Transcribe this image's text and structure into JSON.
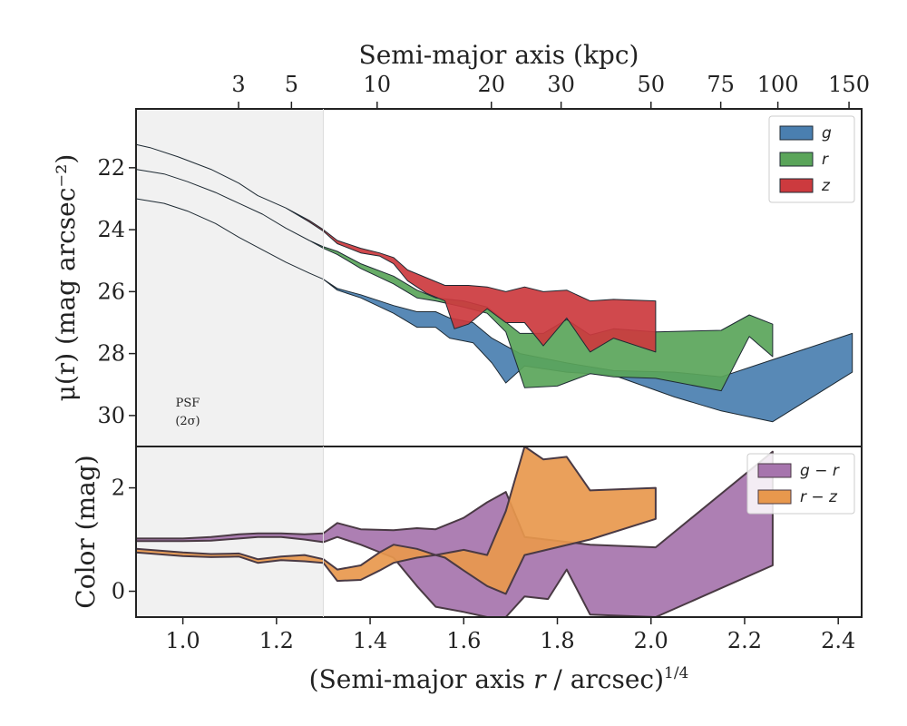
{
  "chart_data": [
    {
      "type": "area",
      "panel": "surface-brightness",
      "title": "",
      "xlabel": "(Semi-major axis r / arcsec)^1/4",
      "ylabel": "μ(r) (mag arcsec⁻²)",
      "top_xlabel": "Semi-major axis (kpc)",
      "top_xticks": [
        3,
        5,
        10,
        20,
        30,
        50,
        75,
        100,
        150
      ],
      "top_xtick_pos": [
        1.119,
        1.232,
        1.415,
        1.659,
        1.808,
        2.0,
        2.149,
        2.271,
        2.423
      ],
      "xlim": [
        0.9,
        2.45
      ],
      "ylim": [
        31.0,
        20.1
      ],
      "yticks": [
        22,
        24,
        26,
        28,
        30
      ],
      "xticks": [
        1.0,
        1.2,
        1.4,
        1.6,
        1.8,
        2.0,
        2.2,
        2.4
      ],
      "psf_region": [
        0.9,
        1.3
      ],
      "psf_label": [
        "PSF",
        "(2σ)"
      ],
      "legend_position": "top-right",
      "series": [
        {
          "name": "g",
          "color": "#4a7fb0",
          "upper": [
            [
              0.9,
              23.0
            ],
            [
              0.96,
              23.15
            ],
            [
              1.01,
              23.4
            ],
            [
              1.07,
              23.8
            ],
            [
              1.12,
              24.25
            ],
            [
              1.17,
              24.65
            ],
            [
              1.22,
              25.05
            ],
            [
              1.27,
              25.4
            ],
            [
              1.3,
              25.6
            ],
            [
              1.33,
              25.9
            ],
            [
              1.38,
              26.1
            ],
            [
              1.45,
              26.45
            ],
            [
              1.5,
              26.65
            ],
            [
              1.54,
              26.65
            ],
            [
              1.57,
              26.85
            ],
            [
              1.62,
              27.0
            ],
            [
              1.66,
              27.5
            ],
            [
              1.72,
              28.0
            ],
            [
              1.82,
              28.3
            ],
            [
              1.92,
              28.55
            ],
            [
              2.05,
              28.6
            ],
            [
              2.15,
              28.75
            ],
            [
              2.26,
              28.2
            ],
            [
              2.43,
              27.35
            ]
          ],
          "lower": [
            [
              0.9,
              23.0
            ],
            [
              0.96,
              23.15
            ],
            [
              1.01,
              23.4
            ],
            [
              1.07,
              23.8
            ],
            [
              1.12,
              24.25
            ],
            [
              1.17,
              24.65
            ],
            [
              1.22,
              25.05
            ],
            [
              1.27,
              25.4
            ],
            [
              1.3,
              25.6
            ],
            [
              1.33,
              25.95
            ],
            [
              1.38,
              26.2
            ],
            [
              1.45,
              26.7
            ],
            [
              1.5,
              27.15
            ],
            [
              1.54,
              27.15
            ],
            [
              1.57,
              27.5
            ],
            [
              1.62,
              27.65
            ],
            [
              1.66,
              28.3
            ],
            [
              1.69,
              28.95
            ],
            [
              1.73,
              28.4
            ],
            [
              1.82,
              28.6
            ],
            [
              1.92,
              28.7
            ],
            [
              2.05,
              29.4
            ],
            [
              2.15,
              29.85
            ],
            [
              2.26,
              30.2
            ],
            [
              2.43,
              28.6
            ]
          ]
        },
        {
          "name": "r",
          "color": "#5aa55a",
          "upper": [
            [
              0.9,
              22.05
            ],
            [
              0.96,
              22.2
            ],
            [
              1.01,
              22.45
            ],
            [
              1.07,
              22.8
            ],
            [
              1.12,
              23.15
            ],
            [
              1.17,
              23.5
            ],
            [
              1.22,
              23.95
            ],
            [
              1.27,
              24.35
            ],
            [
              1.3,
              24.55
            ],
            [
              1.33,
              24.7
            ],
            [
              1.38,
              25.1
            ],
            [
              1.45,
              25.5
            ],
            [
              1.5,
              25.95
            ],
            [
              1.54,
              26.2
            ],
            [
              1.6,
              26.3
            ],
            [
              1.65,
              26.5
            ],
            [
              1.72,
              27.35
            ],
            [
              1.77,
              27.35
            ],
            [
              1.82,
              26.9
            ],
            [
              1.87,
              27.4
            ],
            [
              1.92,
              27.2
            ],
            [
              2.01,
              27.3
            ],
            [
              2.15,
              27.25
            ],
            [
              2.21,
              26.75
            ],
            [
              2.26,
              27.05
            ],
            [
              2.26,
              28.1
            ]
          ],
          "lower": [
            [
              0.9,
              22.05
            ],
            [
              0.96,
              22.2
            ],
            [
              1.01,
              22.45
            ],
            [
              1.07,
              22.8
            ],
            [
              1.12,
              23.15
            ],
            [
              1.17,
              23.5
            ],
            [
              1.22,
              23.95
            ],
            [
              1.27,
              24.35
            ],
            [
              1.3,
              24.6
            ],
            [
              1.33,
              24.8
            ],
            [
              1.38,
              25.25
            ],
            [
              1.45,
              25.75
            ],
            [
              1.5,
              26.2
            ],
            [
              1.54,
              26.3
            ],
            [
              1.6,
              26.5
            ],
            [
              1.65,
              26.7
            ],
            [
              1.69,
              27.3
            ],
            [
              1.73,
              29.1
            ],
            [
              1.8,
              29.05
            ],
            [
              1.87,
              28.65
            ],
            [
              1.92,
              28.75
            ],
            [
              2.01,
              28.8
            ],
            [
              2.15,
              29.2
            ],
            [
              2.21,
              27.45
            ],
            [
              2.26,
              28.1
            ]
          ]
        },
        {
          "name": "z",
          "color": "#cc3a3e",
          "upper": [
            [
              0.9,
              21.25
            ],
            [
              0.93,
              21.35
            ],
            [
              0.99,
              21.65
            ],
            [
              1.06,
              22.05
            ],
            [
              1.12,
              22.5
            ],
            [
              1.16,
              22.9
            ],
            [
              1.22,
              23.3
            ],
            [
              1.27,
              23.7
            ],
            [
              1.3,
              24.0
            ],
            [
              1.33,
              24.35
            ],
            [
              1.38,
              24.6
            ],
            [
              1.42,
              24.75
            ],
            [
              1.45,
              24.9
            ],
            [
              1.48,
              25.3
            ],
            [
              1.52,
              25.55
            ],
            [
              1.56,
              25.8
            ],
            [
              1.61,
              25.8
            ],
            [
              1.65,
              25.85
            ],
            [
              1.69,
              26.0
            ],
            [
              1.73,
              25.85
            ],
            [
              1.77,
              26.0
            ],
            [
              1.82,
              25.95
            ],
            [
              1.87,
              26.3
            ],
            [
              1.92,
              26.25
            ],
            [
              2.01,
              26.3
            ],
            [
              2.01,
              27.95
            ]
          ],
          "lower": [
            [
              0.9,
              21.25
            ],
            [
              0.93,
              21.35
            ],
            [
              0.99,
              21.65
            ],
            [
              1.06,
              22.05
            ],
            [
              1.12,
              22.5
            ],
            [
              1.16,
              22.9
            ],
            [
              1.22,
              23.3
            ],
            [
              1.27,
              23.75
            ],
            [
              1.3,
              24.05
            ],
            [
              1.33,
              24.45
            ],
            [
              1.38,
              24.75
            ],
            [
              1.42,
              24.85
            ],
            [
              1.45,
              25.1
            ],
            [
              1.48,
              25.65
            ],
            [
              1.52,
              26.05
            ],
            [
              1.56,
              26.3
            ],
            [
              1.58,
              27.2
            ],
            [
              1.61,
              27.05
            ],
            [
              1.65,
              26.55
            ],
            [
              1.69,
              27.0
            ],
            [
              1.73,
              27.0
            ],
            [
              1.77,
              27.75
            ],
            [
              1.82,
              26.85
            ],
            [
              1.87,
              27.95
            ],
            [
              1.92,
              27.5
            ],
            [
              2.01,
              27.95
            ]
          ]
        }
      ]
    },
    {
      "type": "area",
      "panel": "color",
      "title": "",
      "xlabel": "(Semi-major axis r / arcsec)^1/4",
      "ylabel": "Color (mag)",
      "xlim": [
        0.9,
        2.45
      ],
      "ylim": [
        -0.5,
        2.8
      ],
      "yticks": [
        0,
        2
      ],
      "xticks": [
        1.0,
        1.2,
        1.4,
        1.6,
        1.8,
        2.0,
        2.2,
        2.4
      ],
      "legend_position": "top-right",
      "series": [
        {
          "name": "g − r",
          "color": "#a674ad",
          "upper": [
            [
              0.9,
              1.02
            ],
            [
              1.0,
              1.02
            ],
            [
              1.06,
              1.05
            ],
            [
              1.12,
              1.1
            ],
            [
              1.16,
              1.12
            ],
            [
              1.21,
              1.12
            ],
            [
              1.26,
              1.1
            ],
            [
              1.3,
              1.12
            ],
            [
              1.33,
              1.32
            ],
            [
              1.38,
              1.2
            ],
            [
              1.45,
              1.18
            ],
            [
              1.5,
              1.22
            ],
            [
              1.54,
              1.2
            ],
            [
              1.6,
              1.42
            ],
            [
              1.65,
              1.72
            ],
            [
              1.69,
              1.92
            ],
            [
              1.73,
              1.05
            ],
            [
              1.87,
              0.9
            ],
            [
              2.01,
              0.85
            ],
            [
              2.26,
              2.7
            ]
          ],
          "lower": [
            [
              0.9,
              0.97
            ],
            [
              1.0,
              0.97
            ],
            [
              1.06,
              0.98
            ],
            [
              1.12,
              1.02
            ],
            [
              1.16,
              1.05
            ],
            [
              1.21,
              1.05
            ],
            [
              1.26,
              1.0
            ],
            [
              1.3,
              0.95
            ],
            [
              1.33,
              1.05
            ],
            [
              1.38,
              0.9
            ],
            [
              1.45,
              0.65
            ],
            [
              1.5,
              0.1
            ],
            [
              1.54,
              -0.3
            ],
            [
              1.6,
              -0.4
            ],
            [
              1.65,
              -0.5
            ],
            [
              1.69,
              -0.5
            ],
            [
              1.73,
              -0.1
            ],
            [
              1.78,
              -0.15
            ],
            [
              1.82,
              0.42
            ],
            [
              1.87,
              -0.45
            ],
            [
              2.01,
              -0.5
            ],
            [
              2.26,
              0.5
            ]
          ]
        },
        {
          "name": "r − z",
          "color": "#e8984d",
          "upper": [
            [
              0.9,
              0.82
            ],
            [
              1.0,
              0.75
            ],
            [
              1.06,
              0.72
            ],
            [
              1.12,
              0.73
            ],
            [
              1.16,
              0.62
            ],
            [
              1.21,
              0.67
            ],
            [
              1.26,
              0.7
            ],
            [
              1.3,
              0.62
            ],
            [
              1.33,
              0.42
            ],
            [
              1.38,
              0.5
            ],
            [
              1.42,
              0.75
            ],
            [
              1.45,
              0.9
            ],
            [
              1.5,
              0.82
            ],
            [
              1.54,
              0.7
            ],
            [
              1.6,
              0.8
            ],
            [
              1.65,
              0.7
            ],
            [
              1.69,
              1.55
            ],
            [
              1.73,
              2.8
            ],
            [
              1.77,
              2.55
            ],
            [
              1.82,
              2.6
            ],
            [
              1.87,
              1.95
            ],
            [
              2.01,
              2.0
            ]
          ],
          "lower": [
            [
              0.9,
              0.75
            ],
            [
              1.0,
              0.68
            ],
            [
              1.06,
              0.66
            ],
            [
              1.12,
              0.67
            ],
            [
              1.16,
              0.55
            ],
            [
              1.21,
              0.6
            ],
            [
              1.26,
              0.58
            ],
            [
              1.3,
              0.55
            ],
            [
              1.33,
              0.2
            ],
            [
              1.38,
              0.22
            ],
            [
              1.42,
              0.4
            ],
            [
              1.45,
              0.55
            ],
            [
              1.5,
              0.65
            ],
            [
              1.54,
              0.7
            ],
            [
              1.56,
              0.65
            ],
            [
              1.6,
              0.4
            ],
            [
              1.65,
              0.1
            ],
            [
              1.69,
              -0.05
            ],
            [
              1.73,
              0.7
            ],
            [
              1.87,
              1.0
            ],
            [
              2.01,
              1.4
            ]
          ]
        }
      ]
    }
  ]
}
